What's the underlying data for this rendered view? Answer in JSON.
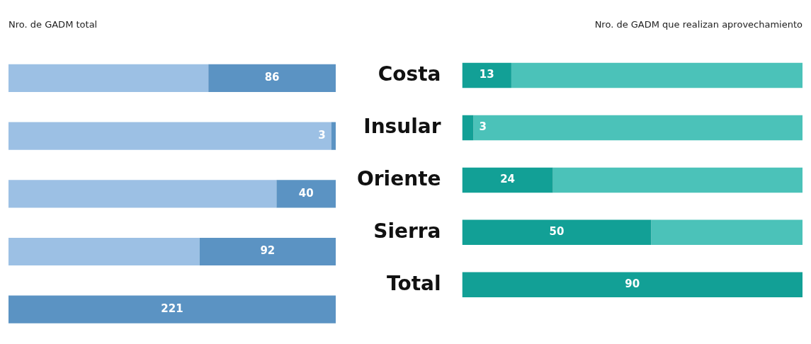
{
  "chart_data": [
    {
      "type": "bar",
      "title": "Nro. de GADM total",
      "orientation": "horizontal",
      "stacked": true,
      "categories": [
        null,
        null,
        null,
        null,
        null
      ],
      "xlim": [
        221,
        0
      ],
      "tick_labels": false,
      "legend": false,
      "series": [
        {
          "color": "#5b93c3",
          "values": [
            86,
            3,
            40,
            92,
            221
          ],
          "value_labels": [
            "86",
            "3",
            "40",
            "92",
            "221"
          ]
        },
        {
          "color": "#9cc0e4",
          "values": [
            135,
            218,
            181,
            129,
            0
          ]
        }
      ]
    },
    {
      "type": "bar",
      "title": "Nro. de GADM que realizan aprovechamiento",
      "orientation": "horizontal",
      "stacked": true,
      "categories": [
        "Costa",
        "Insular",
        "Oriente",
        "Sierra",
        "Total"
      ],
      "xlim": [
        0,
        90
      ],
      "tick_labels": "y",
      "legend": false,
      "series": [
        {
          "color": "#12a096",
          "values": [
            13,
            3,
            24,
            50,
            90
          ],
          "value_labels": [
            "13",
            "3",
            "24",
            "50",
            "90"
          ]
        },
        {
          "color": "#4bc2b9",
          "values": [
            77,
            87,
            66,
            40,
            0
          ]
        }
      ]
    }
  ]
}
